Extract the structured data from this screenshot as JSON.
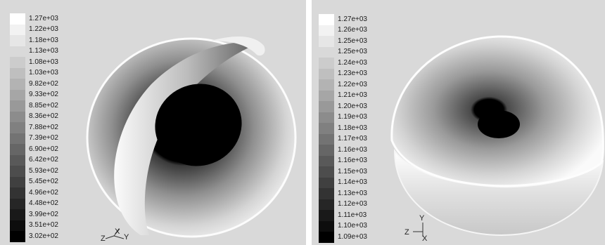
{
  "left_panel": {
    "colorbar": {
      "labels": [
        "1.27e+03",
        "1.22e+03",
        "1.18e+03",
        "1.13e+03",
        "1.08e+03",
        "1.03e+03",
        "9.82e+02",
        "9.33e+02",
        "8.85e+02",
        "8.36e+02",
        "7.88e+02",
        "7.39e+02",
        "6.90e+02",
        "6.42e+02",
        "5.93e+02",
        "5.45e+02",
        "4.96e+02",
        "4.48e+02",
        "3.99e+02",
        "3.51e+02",
        "3.02e+02"
      ]
    },
    "axes": {
      "z": "Z",
      "x": "X",
      "y": "Y"
    }
  },
  "right_panel": {
    "colorbar": {
      "labels": [
        "1.27e+03",
        "1.26e+03",
        "1.25e+03",
        "1.25e+03",
        "1.24e+03",
        "1.23e+03",
        "1.22e+03",
        "1.21e+03",
        "1.20e+03",
        "1.19e+03",
        "1.18e+03",
        "1.17e+03",
        "1.16e+03",
        "1.16e+03",
        "1.15e+03",
        "1.14e+03",
        "1.13e+03",
        "1.12e+03",
        "1.11e+03",
        "1.10e+03",
        "1.09e+03"
      ]
    },
    "axes": {
      "z": "Z",
      "x": "X",
      "y": "Y"
    }
  },
  "colors": {
    "background": "#d9d9d9",
    "max_shade": "#ffffff",
    "min_shade": "#000000"
  }
}
